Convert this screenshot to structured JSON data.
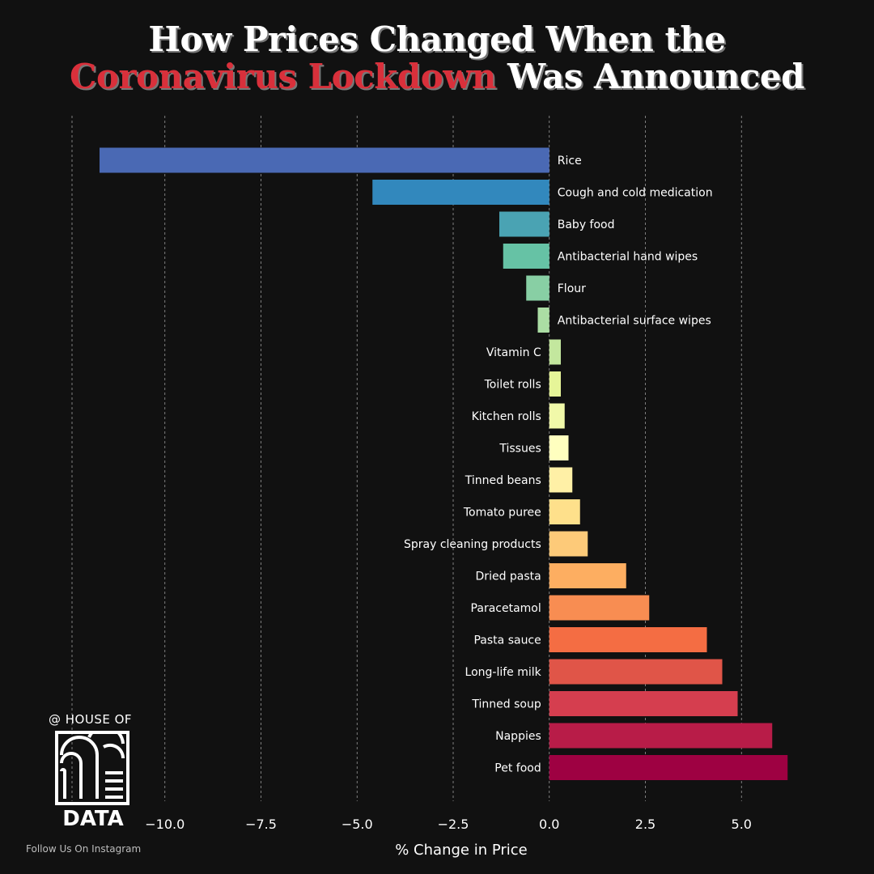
{
  "title": {
    "line1": "How Prices Changed When the",
    "line2_highlight": "Coronavirus Lockdown",
    "line2_rest": " Was Announced"
  },
  "logo": {
    "top_text": "@ HOUSE OF",
    "bottom_text": "DATA",
    "follow_text": "Follow Us On Instagram"
  },
  "chart_data": {
    "type": "bar",
    "orientation": "horizontal",
    "title": "How Prices Changed When the Coronavirus Lockdown Was Announced",
    "xlabel": "% Change in Price",
    "ylabel": "",
    "xlim": [
      -12.5,
      7.5
    ],
    "xticks": [
      -10.0,
      -7.5,
      -5.0,
      -2.5,
      0.0,
      2.5,
      5.0
    ],
    "xtick_labels": [
      "−10.0",
      "−7.5",
      "−5.0",
      "−2.5",
      "0.0",
      "2.5",
      "5.0"
    ],
    "grid": "vertical dashed",
    "categories": [
      "Rice",
      "Cough and cold medication",
      "Baby food",
      "Antibacterial hand wipes",
      "Flour",
      "Antibacterial surface wipes",
      "Vitamin C",
      "Toilet rolls",
      "Kitchen rolls",
      "Tissues",
      "Tinned beans",
      "Tomato puree",
      "Spray cleaning products",
      "Dried pasta",
      "Paracetamol",
      "Pasta sauce",
      "Long-life milk",
      "Tinned soup",
      "Nappies",
      "Pet food"
    ],
    "values": [
      -11.7,
      -4.6,
      -1.3,
      -1.2,
      -0.6,
      -0.3,
      0.3,
      0.3,
      0.4,
      0.5,
      0.6,
      0.8,
      1.0,
      2.0,
      2.6,
      4.1,
      4.5,
      4.9,
      5.8,
      6.2
    ],
    "colors": [
      "#4a69b4",
      "#3288bd",
      "#4aa3b3",
      "#66c2a5",
      "#88cfa4",
      "#abdda4",
      "#c3e79e",
      "#e6f598",
      "#f1f9a9",
      "#ffffbf",
      "#fff0a6",
      "#fee08b",
      "#fdca79",
      "#fdae61",
      "#f88d52",
      "#f46d43",
      "#e05548",
      "#d53e4f",
      "#b81c48",
      "#9e0142"
    ]
  }
}
